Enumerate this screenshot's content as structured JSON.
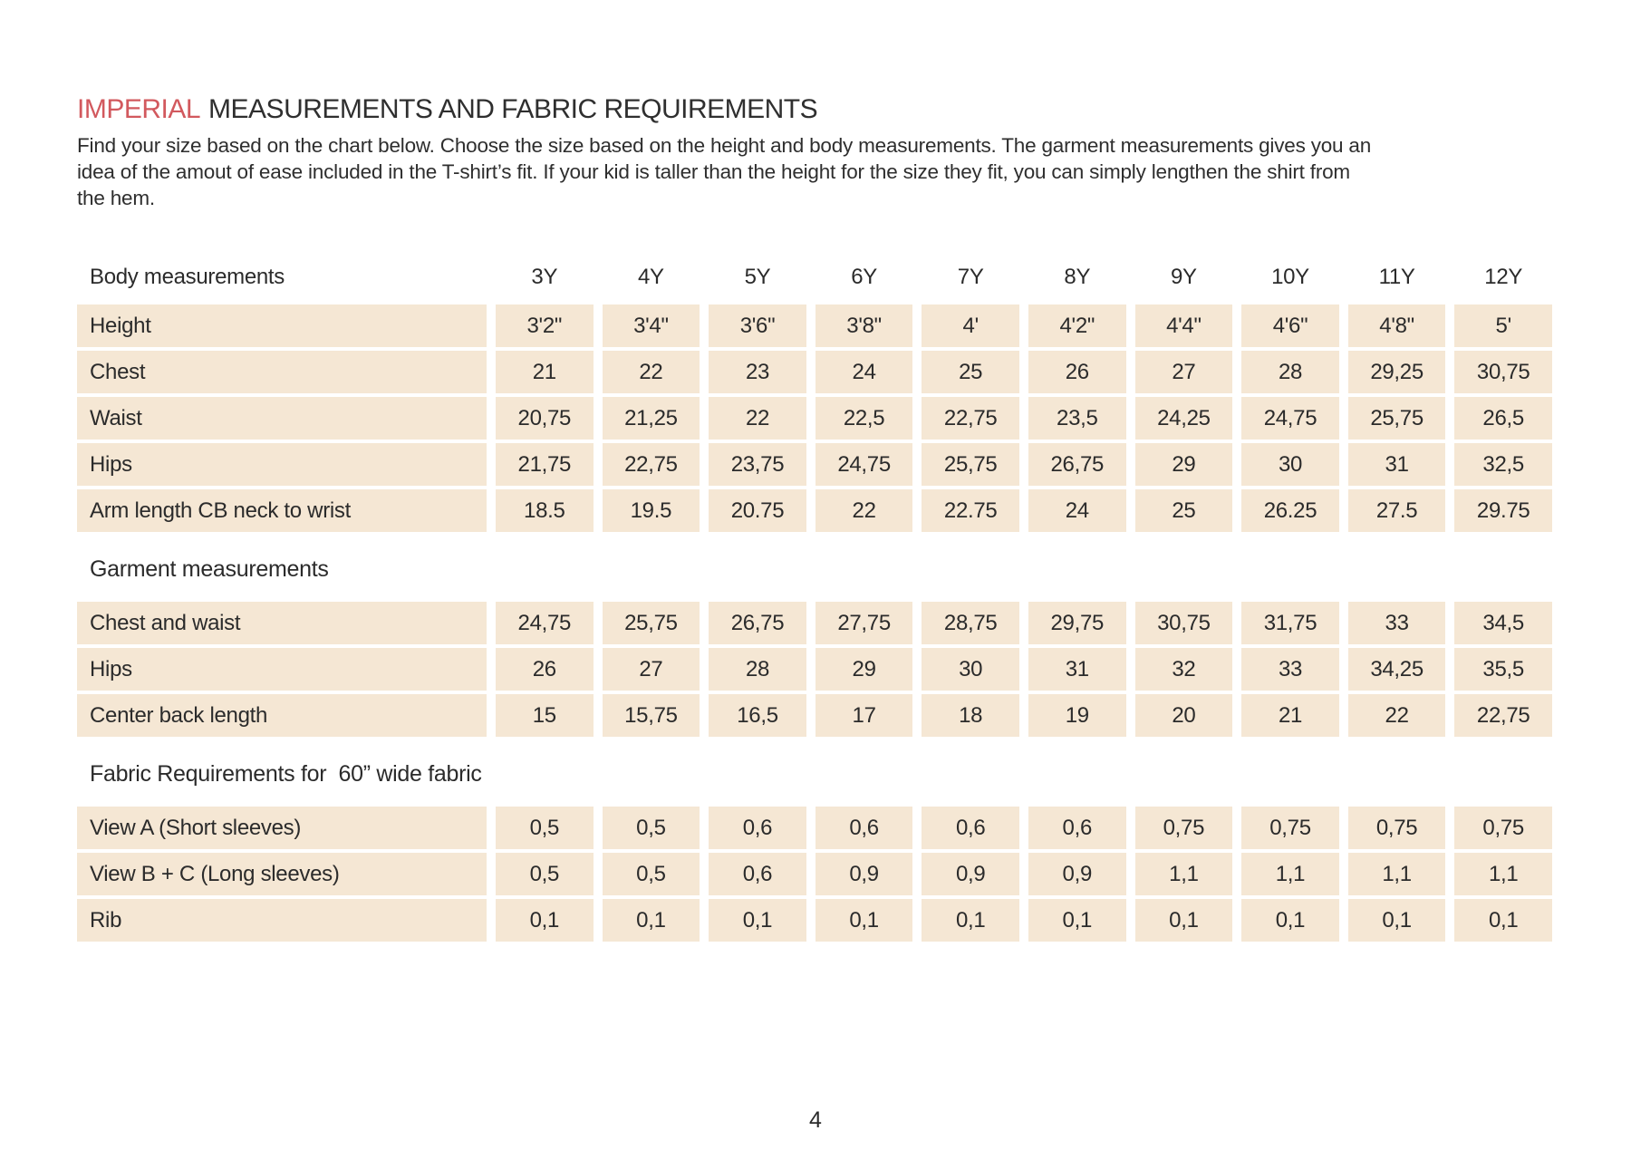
{
  "page": {
    "title_accent": "IMPERIAL",
    "title_rest": "MEASUREMENTS AND FABRIC REQUIREMENTS",
    "intro": "Find your size based on the chart below. Choose the size based on the height and body measurements. The garment measurements gives you an idea of the amout of ease included in the T-shirt’s fit. If your kid is taller than the height for the size they fit, you can simply lengthen the shirt from the hem.",
    "page_number": "4"
  },
  "colors": {
    "accent": "#d2595e",
    "cell_background": "#f5e7d4",
    "text": "#2b2b2b"
  },
  "table": {
    "sizes": [
      "3Y",
      "4Y",
      "5Y",
      "6Y",
      "7Y",
      "8Y",
      "9Y",
      "10Y",
      "11Y",
      "12Y"
    ],
    "sections": [
      {
        "header": "Body measurements",
        "show_sizes": true,
        "rows": [
          {
            "label": "Height",
            "values": [
              "3'2\"",
              "3'4\"",
              "3'6\"",
              "3'8\"",
              "4'",
              "4'2\"",
              "4'4\"",
              "4'6\"",
              "4'8\"",
              "5'"
            ]
          },
          {
            "label": "Chest",
            "values": [
              "21",
              "22",
              "23",
              "24",
              "25",
              "26",
              "27",
              "28",
              "29,25",
              "30,75"
            ]
          },
          {
            "label": "Waist",
            "values": [
              "20,75",
              "21,25",
              "22",
              "22,5",
              "22,75",
              "23,5",
              "24,25",
              "24,75",
              "25,75",
              "26,5"
            ]
          },
          {
            "label": "Hips",
            "values": [
              "21,75",
              "22,75",
              "23,75",
              "24,75",
              "25,75",
              "26,75",
              "29",
              "30",
              "31",
              "32,5"
            ]
          },
          {
            "label": "Arm length CB neck to wrist",
            "values": [
              "18.5",
              "19.5",
              "20.75",
              "22",
              "22.75",
              "24",
              "25",
              "26.25",
              "27.5",
              "29.75"
            ]
          }
        ]
      },
      {
        "header": "Garment measurements",
        "show_sizes": false,
        "rows": [
          {
            "label": "Chest and waist",
            "values": [
              "24,75",
              "25,75",
              "26,75",
              "27,75",
              "28,75",
              "29,75",
              "30,75",
              "31,75",
              "33",
              "34,5"
            ]
          },
          {
            "label": "Hips",
            "values": [
              "26",
              "27",
              "28",
              "29",
              "30",
              "31",
              "32",
              "33",
              "34,25",
              "35,5"
            ]
          },
          {
            "label": "Center back length",
            "values": [
              "15",
              "15,75",
              "16,5",
              "17",
              "18",
              "19",
              "20",
              "21",
              "22",
              "22,75"
            ]
          }
        ]
      },
      {
        "header": "Fabric Requirements for  60” wide fabric",
        "show_sizes": false,
        "rows": [
          {
            "label": "View A (Short sleeves)",
            "values": [
              "0,5",
              "0,5",
              "0,6",
              "0,6",
              "0,6",
              "0,6",
              "0,75",
              "0,75",
              "0,75",
              "0,75"
            ]
          },
          {
            "label": "View B + C (Long sleeves)",
            "values": [
              "0,5",
              "0,5",
              "0,6",
              "0,9",
              "0,9",
              "0,9",
              "1,1",
              "1,1",
              "1,1",
              "1,1"
            ]
          },
          {
            "label": "Rib",
            "values": [
              "0,1",
              "0,1",
              "0,1",
              "0,1",
              "0,1",
              "0,1",
              "0,1",
              "0,1",
              "0,1",
              "0,1"
            ]
          }
        ]
      }
    ]
  }
}
